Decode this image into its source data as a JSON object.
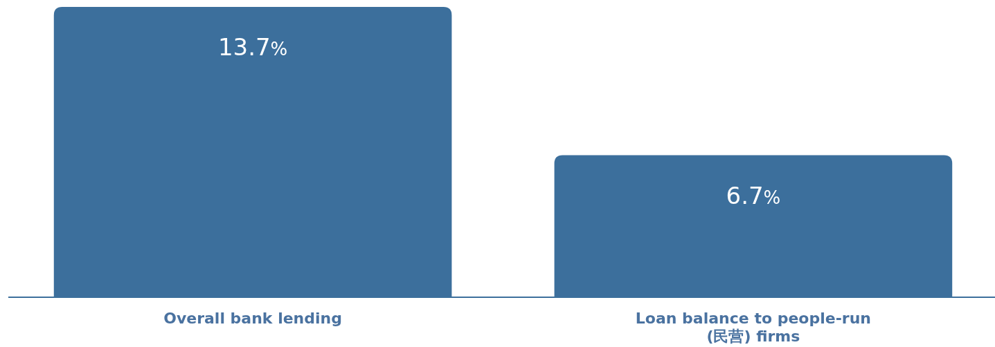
{
  "chart_data": {
    "type": "bar",
    "categories": [
      "Overall bank lending",
      "Loan balance to people-run (民营) firms"
    ],
    "values": [
      13.7,
      6.7
    ],
    "value_labels": [
      "13.7%",
      "6.7%"
    ],
    "color": "#3c6f9c"
  }
}
